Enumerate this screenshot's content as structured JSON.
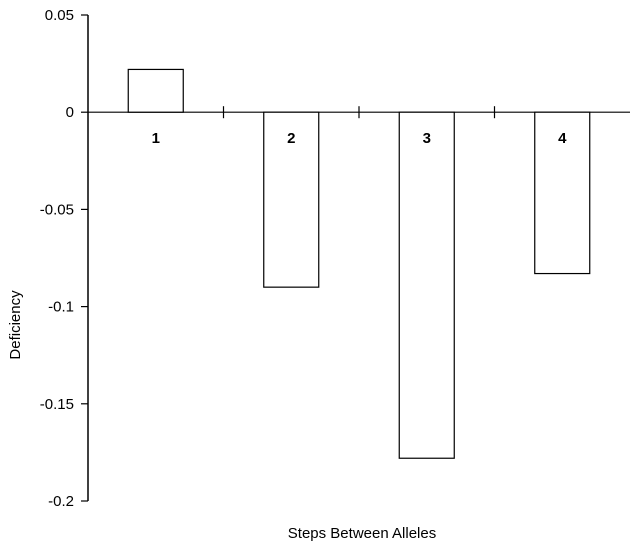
{
  "chart_data": {
    "type": "bar",
    "title": "",
    "xlabel": "Steps Between Alleles",
    "ylabel": "Deficiency",
    "categories": [
      "1",
      "2",
      "3",
      "4"
    ],
    "values": [
      0.022,
      -0.09,
      -0.178,
      -0.083
    ],
    "ylim": [
      -0.2,
      0.05
    ],
    "yticks": [
      0.05,
      0,
      -0.05,
      -0.1,
      -0.15,
      -0.2
    ],
    "ytick_labels": [
      "0.05",
      "0",
      "-0.05",
      "-0.1",
      "-0.15",
      "-0.2"
    ],
    "grid": false,
    "legend": "none",
    "colors": {
      "bar_fill": "#ffffff",
      "bar_stroke": "#000000",
      "axis": "#000000"
    }
  }
}
